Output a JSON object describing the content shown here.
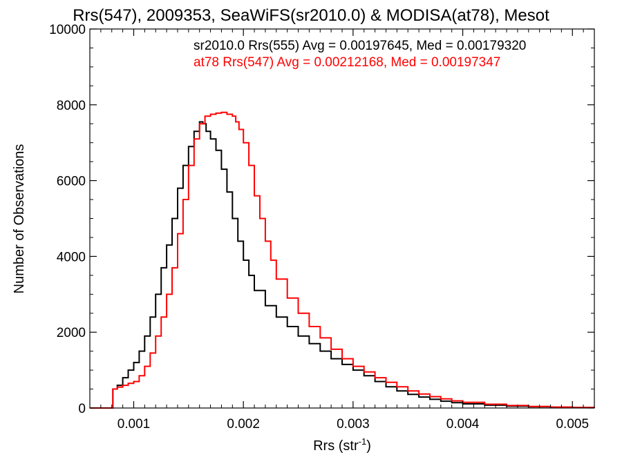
{
  "chart_data": {
    "type": "line",
    "title": "Rrs(547), 2009353, SeaWiFS(sr2010.0) & MODISA(at78), Mesot",
    "xlabel": "Rrs (str",
    "xlabel_sup": "-1",
    "xlabel_close": ")",
    "ylabel": "Number of Observations",
    "xlim": [
      0.0006,
      0.0052
    ],
    "ylim": [
      0,
      10000
    ],
    "xticks": [
      0.001,
      0.002,
      0.003,
      0.004,
      0.005
    ],
    "xtick_labels": [
      "0.001",
      "0.002",
      "0.003",
      "0.004",
      "0.005"
    ],
    "yticks": [
      0,
      2000,
      4000,
      6000,
      8000,
      10000
    ],
    "ytick_labels": [
      "0",
      "2000",
      "4000",
      "6000",
      "8000",
      "10000"
    ],
    "step_style": "histogram",
    "annotations": [
      {
        "text": "sr2010.0 Rrs(555) Avg = 0.00197645, Med = 0.00179320",
        "color": "#000000"
      },
      {
        "text": "at78 Rrs(547) Avg = 0.00212168, Med = 0.00197347",
        "color": "#ff0000"
      }
    ],
    "series": [
      {
        "color": "#000000",
        "x": [
          0.0006,
          0.0008,
          0.00081,
          0.00085,
          0.0009,
          0.00095,
          0.001,
          0.00105,
          0.0011,
          0.00115,
          0.0012,
          0.00125,
          0.0013,
          0.00135,
          0.0014,
          0.00145,
          0.0015,
          0.00155,
          0.0016,
          0.00163,
          0.00166,
          0.0017,
          0.00175,
          0.0018,
          0.00185,
          0.0019,
          0.00195,
          0.002,
          0.00205,
          0.0021,
          0.0022,
          0.0023,
          0.0024,
          0.0025,
          0.0026,
          0.0027,
          0.0028,
          0.0029,
          0.003,
          0.0031,
          0.0032,
          0.0033,
          0.0034,
          0.0035,
          0.0036,
          0.0037,
          0.0038,
          0.0039,
          0.004,
          0.0042,
          0.0044,
          0.0046,
          0.0048,
          0.005,
          0.0052
        ],
        "y": [
          0,
          0,
          500,
          600,
          800,
          1000,
          1200,
          1500,
          1900,
          2400,
          3000,
          3700,
          4300,
          5000,
          5800,
          6400,
          6900,
          7300,
          7550,
          7500,
          7300,
          7100,
          6800,
          6300,
          5700,
          5000,
          4400,
          3900,
          3500,
          3100,
          2700,
          2400,
          2150,
          1900,
          1700,
          1500,
          1300,
          1150,
          1000,
          850,
          700,
          560,
          450,
          360,
          290,
          230,
          180,
          140,
          110,
          75,
          50,
          35,
          20,
          12,
          8
        ]
      },
      {
        "color": "#ff0000",
        "x": [
          0.0006,
          0.0008,
          0.00081,
          0.00085,
          0.0009,
          0.00095,
          0.001,
          0.00105,
          0.0011,
          0.00115,
          0.0012,
          0.00125,
          0.0013,
          0.00135,
          0.0014,
          0.00145,
          0.0015,
          0.00155,
          0.0016,
          0.00165,
          0.0017,
          0.00175,
          0.0018,
          0.00185,
          0.0019,
          0.00193,
          0.00196,
          0.002,
          0.00205,
          0.0021,
          0.00215,
          0.0022,
          0.00225,
          0.0023,
          0.0024,
          0.0025,
          0.0026,
          0.0027,
          0.0028,
          0.0029,
          0.003,
          0.0031,
          0.0032,
          0.0033,
          0.0034,
          0.0035,
          0.0036,
          0.0037,
          0.0038,
          0.0039,
          0.004,
          0.0042,
          0.0044,
          0.0046,
          0.0048,
          0.005,
          0.0052
        ],
        "y": [
          0,
          0,
          500,
          550,
          600,
          650,
          700,
          850,
          1100,
          1450,
          1900,
          2400,
          3000,
          3700,
          4600,
          5500,
          6400,
          7100,
          7500,
          7700,
          7750,
          7780,
          7800,
          7750,
          7700,
          7550,
          7350,
          7000,
          6400,
          5600,
          5000,
          4400,
          3900,
          3400,
          2900,
          2500,
          2150,
          1850,
          1550,
          1300,
          1100,
          950,
          800,
          680,
          560,
          450,
          370,
          300,
          240,
          190,
          150,
          100,
          65,
          40,
          25,
          15,
          10
        ]
      }
    ]
  }
}
